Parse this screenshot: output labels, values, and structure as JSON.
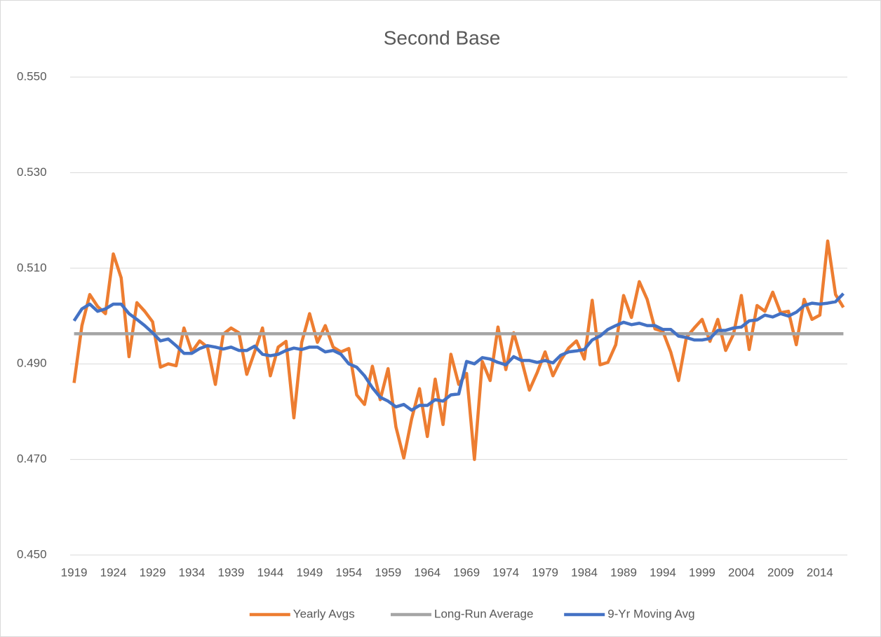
{
  "chart_data": {
    "type": "line",
    "title": "Second Base",
    "categories": [
      1919,
      null,
      null,
      null,
      null,
      1924,
      null,
      null,
      null,
      null,
      1929,
      null,
      null,
      null,
      null,
      1934,
      null,
      null,
      null,
      null,
      1939,
      null,
      null,
      null,
      null,
      1944,
      null,
      null,
      null,
      null,
      1949,
      null,
      null,
      null,
      null,
      1954,
      null,
      null,
      null,
      null,
      1959,
      null,
      null,
      null,
      null,
      1964,
      null,
      null,
      null,
      null,
      1969,
      null,
      null,
      null,
      null,
      1974,
      null,
      null,
      null,
      null,
      1979,
      null,
      null,
      null,
      null,
      1984,
      null,
      null,
      null,
      null,
      1989,
      null,
      null,
      null,
      null,
      1994,
      null,
      null,
      null,
      null,
      1999,
      null,
      null,
      null,
      null,
      2004,
      null,
      null,
      null,
      null,
      2009,
      null,
      null,
      null,
      null,
      2014,
      null,
      null,
      null
    ],
    "series": [
      {
        "name": "Yearly Avgs",
        "color": "#ed7d31",
        "values": [
          0.486,
          0.498,
          0.5045,
          0.502,
          0.5005,
          0.513,
          0.508,
          0.4915,
          0.5028,
          0.501,
          0.4988,
          0.4893,
          0.49,
          0.4896,
          0.4975,
          0.4925,
          0.4948,
          0.4935,
          0.4857,
          0.4962,
          0.4975,
          0.4965,
          0.4878,
          0.4925,
          0.4975,
          0.4875,
          0.4935,
          0.4947,
          0.4787,
          0.4945,
          0.5005,
          0.4945,
          0.498,
          0.4935,
          0.4925,
          0.4932,
          0.4835,
          0.4815,
          0.4895,
          0.4825,
          0.489,
          0.4768,
          0.4703,
          0.4785,
          0.4848,
          0.4748,
          0.4868,
          0.4773,
          0.492,
          0.4857,
          0.488,
          0.47,
          0.4905,
          0.4865,
          0.4977,
          0.4888,
          0.4965,
          0.4908,
          0.4845,
          0.4882,
          0.4925,
          0.4875,
          0.4908,
          0.4933,
          0.4948,
          0.491,
          0.5033,
          0.4898,
          0.4903,
          0.494,
          0.5043,
          0.4997,
          0.5072,
          0.5035,
          0.4973,
          0.4968,
          0.4925,
          0.4865,
          0.4955,
          0.4975,
          0.4993,
          0.4947,
          0.4993,
          0.4928,
          0.4962,
          0.5043,
          0.493,
          0.5022,
          0.501,
          0.505,
          0.5007,
          0.501,
          0.494,
          0.5035,
          0.4993,
          0.5002,
          0.5157,
          0.5045,
          0.5018
        ]
      },
      {
        "name": "Long-Run Average",
        "color": "#a5a5a5",
        "values": [
          0.4963,
          0.4963,
          0.4963,
          0.4963,
          0.4963,
          0.4963,
          0.4963,
          0.4963,
          0.4963,
          0.4963,
          0.4963,
          0.4963,
          0.4963,
          0.4963,
          0.4963,
          0.4963,
          0.4963,
          0.4963,
          0.4963,
          0.4963,
          0.4963,
          0.4963,
          0.4963,
          0.4963,
          0.4963,
          0.4963,
          0.4963,
          0.4963,
          0.4963,
          0.4963,
          0.4963,
          0.4963,
          0.4963,
          0.4963,
          0.4963,
          0.4963,
          0.4963,
          0.4963,
          0.4963,
          0.4963,
          0.4963,
          0.4963,
          0.4963,
          0.4963,
          0.4963,
          0.4963,
          0.4963,
          0.4963,
          0.4963,
          0.4963,
          0.4963,
          0.4963,
          0.4963,
          0.4963,
          0.4963,
          0.4963,
          0.4963,
          0.4963,
          0.4963,
          0.4963,
          0.4963,
          0.4963,
          0.4963,
          0.4963,
          0.4963,
          0.4963,
          0.4963,
          0.4963,
          0.4963,
          0.4963,
          0.4963,
          0.4963,
          0.4963,
          0.4963,
          0.4963,
          0.4963,
          0.4963,
          0.4963,
          0.4963,
          0.4963,
          0.4963,
          0.4963,
          0.4963,
          0.4963,
          0.4963,
          0.4963,
          0.4963,
          0.4963,
          0.4963,
          0.4963,
          0.4963,
          0.4963,
          0.4963,
          0.4963,
          0.4963,
          0.4963,
          0.4963,
          0.4963,
          0.4963
        ]
      },
      {
        "name": "9-Yr Moving Avg",
        "color": "#4472c4",
        "values": [
          0.499,
          0.5015,
          0.5025,
          0.501,
          0.5015,
          0.5025,
          0.5025,
          0.5005,
          0.4993,
          0.498,
          0.4965,
          0.4948,
          0.4952,
          0.4938,
          0.4922,
          0.4922,
          0.4932,
          0.4938,
          0.4935,
          0.4931,
          0.4935,
          0.4928,
          0.4928,
          0.4937,
          0.492,
          0.4917,
          0.492,
          0.4928,
          0.4933,
          0.493,
          0.4935,
          0.4935,
          0.4925,
          0.4928,
          0.492,
          0.49,
          0.4893,
          0.4875,
          0.485,
          0.483,
          0.4822,
          0.481,
          0.4815,
          0.4803,
          0.4813,
          0.4813,
          0.4825,
          0.4822,
          0.4835,
          0.4837,
          0.4905,
          0.49,
          0.4913,
          0.491,
          0.4903,
          0.4898,
          0.4915,
          0.4907,
          0.4907,
          0.4903,
          0.4907,
          0.4902,
          0.4918,
          0.4925,
          0.4927,
          0.493,
          0.495,
          0.4958,
          0.4972,
          0.498,
          0.4987,
          0.4982,
          0.4985,
          0.498,
          0.498,
          0.4972,
          0.4972,
          0.4958,
          0.4955,
          0.495,
          0.495,
          0.4953,
          0.497,
          0.497,
          0.4975,
          0.4977,
          0.499,
          0.4992,
          0.5002,
          0.4998,
          0.5005,
          0.5,
          0.5008,
          0.5022,
          0.5027,
          0.5025,
          0.5027,
          0.503,
          0.5047
        ]
      }
    ],
    "ylim": [
      0.45,
      0.55
    ],
    "yticks": [
      {
        "value": 0.45,
        "label": "0.450"
      },
      {
        "value": 0.47,
        "label": "0.470"
      },
      {
        "value": 0.49,
        "label": "0.490"
      },
      {
        "value": 0.51,
        "label": "0.510"
      },
      {
        "value": 0.53,
        "label": "0.530"
      },
      {
        "value": 0.55,
        "label": "0.550"
      }
    ],
    "grid": true,
    "legend": "bottom"
  }
}
